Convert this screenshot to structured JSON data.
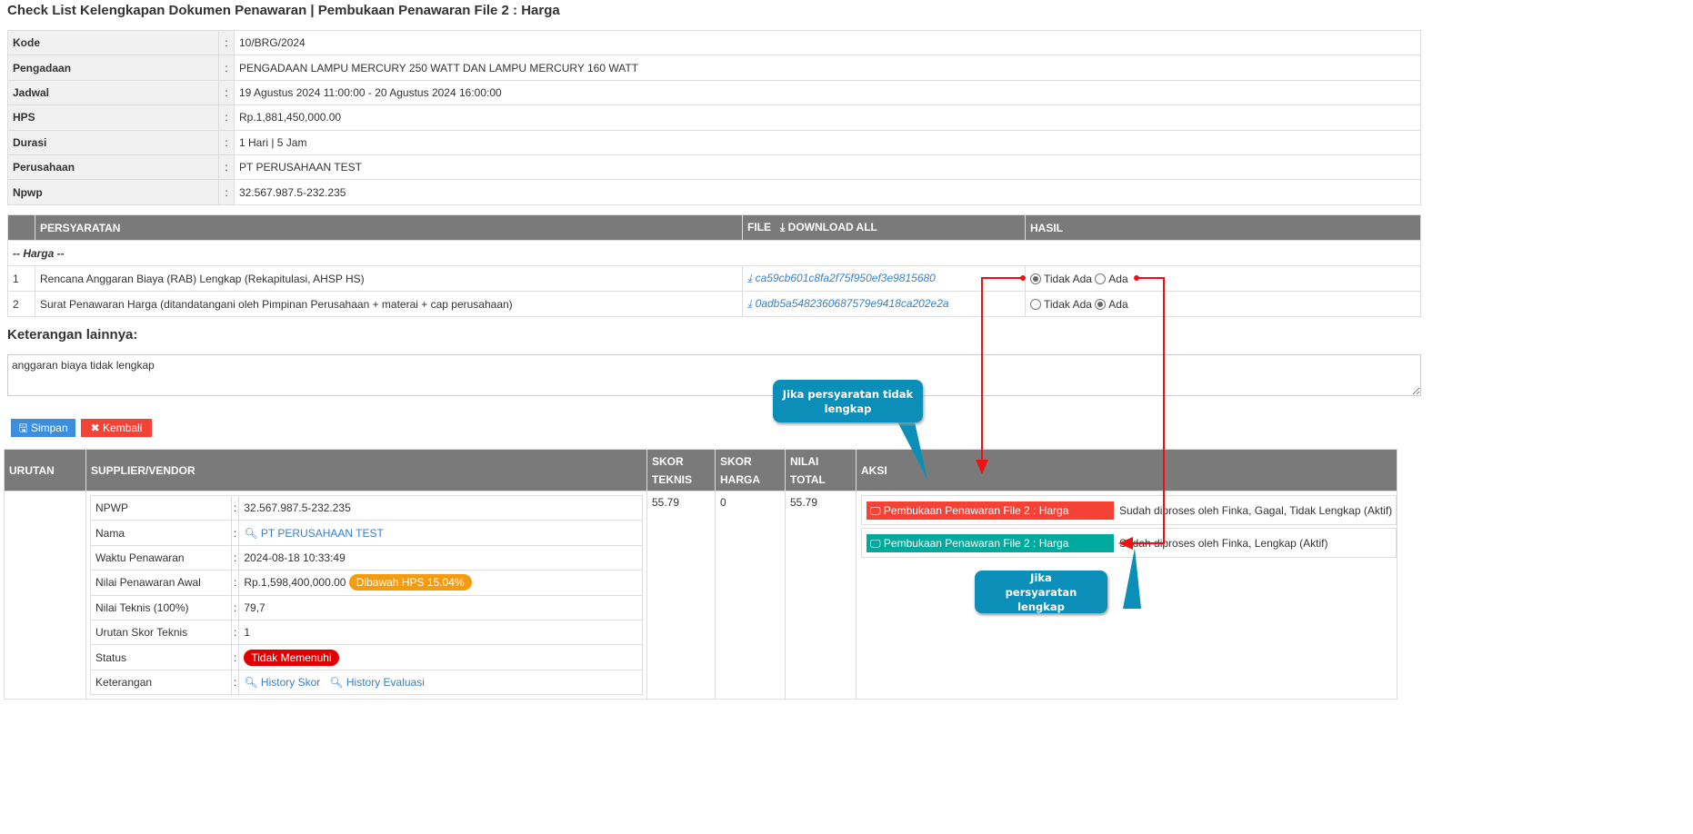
{
  "title": "Check List Kelengkapan Dokumen Penawaran | Pembukaan Penawaran File 2 : Harga",
  "info": [
    {
      "label": "Kode",
      "value": "10/BRG/2024"
    },
    {
      "label": "Pengadaan",
      "value": "PENGADAAN LAMPU MERCURY 250 WATT DAN LAMPU MERCURY 160 WATT"
    },
    {
      "label": "Jadwal",
      "value": "19 Agustus 2024 11:00:00 - 20 Agustus 2024 16:00:00"
    },
    {
      "label": "HPS",
      "value": "Rp.1,881,450,000.00"
    },
    {
      "label": "Durasi",
      "value": "1 Hari | 5 Jam"
    },
    {
      "label": "Perusahaan",
      "value": "PT PERUSAHAAN TEST"
    },
    {
      "label": "Npwp",
      "value": "32.567.987.5-232.235"
    }
  ],
  "colon": ":",
  "requirements": {
    "headers": {
      "persyaratan": "PERSYARATAN",
      "file": "FILE",
      "download_all": "DOWNLOAD ALL",
      "hasil": "HASIL"
    },
    "group": "-- Harga --",
    "rows": [
      {
        "no": "1",
        "name": "Rencana Anggaran Biaya (RAB) Lengkap (Rekapitulasi, AHSP HS)",
        "file": "ca59cb601c8fa2f75f950ef3e9815680",
        "selected": "Tidak Ada"
      },
      {
        "no": "2",
        "name": "Surat Penawaran Harga (ditandatangani oleh Pimpinan Perusahaan + materai + cap perusahaan)",
        "file": "0adb5a5482360687579e9418ca202e2a",
        "selected": "Ada"
      }
    ],
    "options": [
      "Tidak Ada",
      "Ada"
    ]
  },
  "keterangan": {
    "label": "Keterangan lainnya:",
    "value": "anggaran biaya tidak lengkap"
  },
  "buttons": {
    "simpan": "Simpan",
    "kembali": "Kembali"
  },
  "main": {
    "headers": {
      "urutan": "URUTAN",
      "supplier": "SUPPLIER/VENDOR",
      "skor_teknis": "SKOR TEKNIS",
      "skor_harga": "SKOR HARGA",
      "nilai_total": "NILAI TOTAL",
      "aksi": "AKSI"
    },
    "row": {
      "skor_teknis": "55.79",
      "skor_harga": "0",
      "nilai_total": "55.79",
      "supplier": {
        "npwp_label": "NPWP",
        "npwp": "32.567.987.5-232.235",
        "nama_label": "Nama",
        "nama": "PT PERUSAHAAN TEST",
        "waktu_label": "Waktu Penawaran",
        "waktu": "2024-08-18 10:33:49",
        "nilai_label": "Nilai Penawaran Awal",
        "nilai": "Rp.1,598,400,000.00",
        "nilai_badge": "Dibawah HPS 15.04%",
        "teknis_label": "Nilai Teknis (100%)",
        "teknis": "79,7",
        "urutan_label": "Urutan Skor Teknis",
        "urutan": "1",
        "status_label": "Status",
        "status": "Tidak Memenuhi",
        "ket_label": "Keterangan",
        "history_skor": "History Skor",
        "history_evaluasi": "History Evaluasi"
      },
      "aksi": [
        {
          "label": "Pembukaan Penawaran File 2 : Harga",
          "status": "Sudah diproses oleh Finka, Gagal, Tidak Lengkap (Aktif)",
          "color": "#f44336"
        },
        {
          "label": "Pembukaan Penawaran File 2 : Harga",
          "status": "Sudah diproses oleh Finka, Lengkap (Aktif)",
          "color": "#00a99d"
        }
      ]
    }
  },
  "annotations": {
    "tidak_lengkap": "Jika persyaratan tidak lengkap",
    "lengkap": "Jika persyaratan lengkap",
    "arrow_color": "#ee1111",
    "callout_color": "#0b8fb8"
  }
}
